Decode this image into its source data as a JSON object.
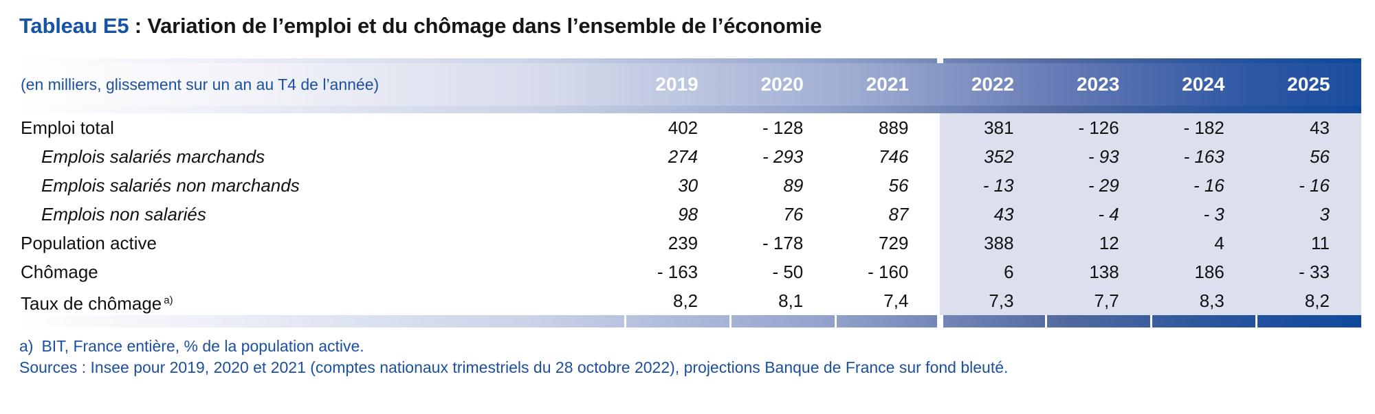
{
  "title": {
    "prefix": "Tableau E5",
    "rest": " : Variation de l’emploi et du chômage dans l’ensemble de l’économie"
  },
  "table": {
    "unit_caption": "(en milliers, glissement sur un an au T4 de l’année)",
    "years": [
      "2019",
      "2020",
      "2021",
      "2022",
      "2023",
      "2024",
      "2025"
    ],
    "projection_years_start": "2022",
    "rows": [
      {
        "label": "Emploi total",
        "style": "normal",
        "values": [
          "402",
          "- 128",
          "889",
          "381",
          "- 126",
          "- 182",
          "43"
        ]
      },
      {
        "label": "Emplois salariés marchands",
        "style": "italic-sub",
        "values": [
          "274",
          "- 293",
          "746",
          "352",
          "- 93",
          "- 163",
          "56"
        ]
      },
      {
        "label": "Emplois salariés non marchands",
        "style": "italic-sub",
        "values": [
          "30",
          "89",
          "56",
          "- 13",
          "- 29",
          "- 16",
          "- 16"
        ]
      },
      {
        "label": "Emplois non salariés",
        "style": "italic-sub",
        "values": [
          "98",
          "76",
          "87",
          "43",
          "- 4",
          "- 3",
          "3"
        ]
      },
      {
        "label": "Population active",
        "style": "normal",
        "values": [
          "239",
          "- 178",
          "729",
          "388",
          "12",
          "4",
          "11"
        ]
      },
      {
        "label": "Chômage",
        "style": "normal",
        "values": [
          "- 163",
          "- 50",
          "- 160",
          "6",
          "138",
          "186",
          "- 33"
        ]
      },
      {
        "label": "Taux de chômage",
        "footnote_marker": "a)",
        "style": "normal",
        "values": [
          "8,2",
          "8,1",
          "7,4",
          "7,3",
          "7,7",
          "8,3",
          "8,2"
        ]
      }
    ]
  },
  "footnotes": {
    "note_a_marker": "a)",
    "note_a_text": "BIT, France entière, % de la population active.",
    "sources": "Sources : Insee pour 2019, 2020 et 2021 (comptes nationaux trimestriels du 28 octobre 2022), projections Banque de France sur fond bleuté."
  },
  "colors": {
    "brand_blue": "#1c4fa0",
    "header_dark_blue": "#1b4e9e",
    "projection_background": "#dcdfee",
    "body_text": "#111111"
  }
}
